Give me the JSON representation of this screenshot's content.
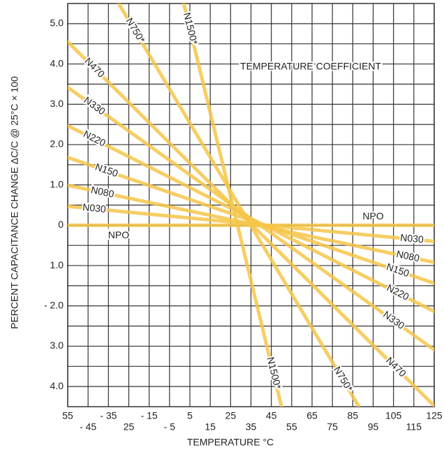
{
  "chart_data": {
    "type": "line",
    "y_label": "PERCENT CAPACITANCE CHANGE ΔC/C @ 25°C × 100",
    "x_label": "TEMPERATURE °C",
    "annotation": "TEMPERATURE COEFFICIENT",
    "xlim": [
      -55,
      125
    ],
    "ylim": [
      -4.5,
      5.5
    ],
    "xticks": [
      {
        "value": -55,
        "label": "55"
      },
      {
        "value": -45,
        "label": "- 45"
      },
      {
        "value": -35,
        "label": "- 35"
      },
      {
        "value": -25,
        "label": "25"
      },
      {
        "value": -15,
        "label": "- 15"
      },
      {
        "value": -5,
        "label": "- 5"
      },
      5,
      15,
      25,
      35,
      45,
      55,
      65,
      75,
      85,
      95,
      105,
      115,
      125
    ],
    "yticks": [
      {
        "value": 5,
        "label": "5.0"
      },
      {
        "value": 4,
        "label": "4.0"
      },
      {
        "value": 3,
        "label": "3.0"
      },
      {
        "value": 2,
        "label": "2.0"
      },
      {
        "value": 1,
        "label": "1.0"
      },
      0,
      {
        "value": -1,
        "label": "1.0"
      },
      {
        "value": -2,
        "label": "- 2.0"
      },
      {
        "value": -3,
        "label": "3.0"
      },
      {
        "value": -4,
        "label": "4.0"
      }
    ],
    "grid": true,
    "series": [
      {
        "name": "N470",
        "color": "#f6c64a",
        "x": [
          -55,
          125
        ],
        "values": [
          4.55,
          -4.48
        ]
      },
      {
        "name": "N330",
        "color": "#f6c64a",
        "x": [
          -55,
          125
        ],
        "values": [
          3.42,
          -3.09
        ]
      },
      {
        "name": "N220",
        "color": "#f6c64a",
        "x": [
          -55,
          125
        ],
        "values": [
          2.47,
          -2.14
        ]
      },
      {
        "name": "N150",
        "color": "#f6c64a",
        "x": [
          -55,
          125
        ],
        "values": [
          1.68,
          -1.44
        ]
      },
      {
        "name": "N080",
        "color": "#f6c64a",
        "x": [
          -55,
          125
        ],
        "values": [
          0.99,
          -0.92
        ]
      },
      {
        "name": "N030",
        "color": "#f6c64a",
        "x": [
          -55,
          125
        ],
        "values": [
          0.47,
          -0.4
        ]
      },
      {
        "name": "NPO",
        "color": "#f6c64a",
        "x": [
          -55,
          125
        ],
        "values": [
          0,
          0
        ]
      },
      {
        "name": "N750*",
        "color": "#f6c64a",
        "x": [
          -30,
          88
        ],
        "values": [
          5.5,
          -4.5
        ]
      },
      {
        "name": "N1500*",
        "color": "#f6c64a",
        "x": [
          2,
          50
        ],
        "values": [
          5.5,
          -4.5
        ]
      }
    ]
  }
}
